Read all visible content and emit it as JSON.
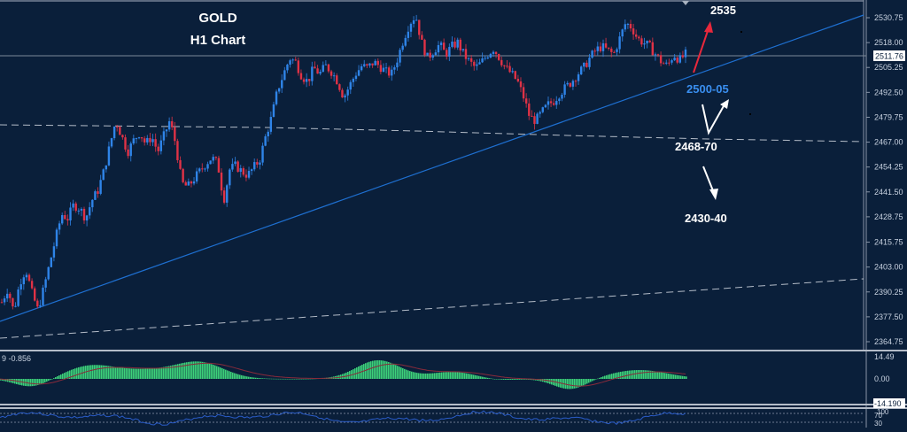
{
  "chart_data": {
    "type": "candlestick",
    "title": "GOLD",
    "subtitle": "H1 Chart",
    "symbol": "GOLD",
    "timeframe": "H1",
    "current_price": "2511.76",
    "y_axis": {
      "ticks": [
        "2530.75",
        "2518.00",
        "2505.25",
        "2492.50",
        "2479.75",
        "2467.00",
        "2454.25",
        "2441.50",
        "2428.75",
        "2415.75",
        "2403.00",
        "2390.25",
        "2377.50",
        "2364.75"
      ],
      "range": [
        2360,
        2538
      ]
    },
    "price_path": [
      2385,
      2392,
      2380,
      2395,
      2402,
      2390,
      2381,
      2392,
      2405,
      2418,
      2430,
      2428,
      2435,
      2433,
      2428,
      2437,
      2442,
      2452,
      2465,
      2478,
      2470,
      2462,
      2468,
      2472,
      2466,
      2470,
      2462,
      2470,
      2478,
      2466,
      2446,
      2444,
      2448,
      2452,
      2456,
      2459,
      2456,
      2437,
      2453,
      2455,
      2452,
      2450,
      2454,
      2458,
      2470,
      2480,
      2494,
      2502,
      2510,
      2508,
      2501,
      2498,
      2505,
      2502,
      2506,
      2503,
      2498,
      2490,
      2496,
      2502,
      2506,
      2505,
      2508,
      2506,
      2503,
      2502,
      2510,
      2520,
      2528,
      2532,
      2518,
      2510,
      2514,
      2517,
      2512,
      2516,
      2518,
      2512,
      2508,
      2505,
      2508,
      2512,
      2515,
      2510,
      2505,
      2502,
      2498,
      2490,
      2480,
      2478,
      2482,
      2486,
      2488,
      2492,
      2495,
      2498,
      2502,
      2505,
      2510,
      2514,
      2516,
      2514,
      2512,
      2520,
      2528,
      2526,
      2520,
      2518,
      2516,
      2512,
      2508,
      2506,
      2512,
      2509,
      2512
    ],
    "annotations": [
      {
        "text": "2535",
        "color": "#ffffff",
        "arrow": "up",
        "arrow_color": "#e8283c"
      },
      {
        "text": "2500-05",
        "color": "#3a8ff0"
      },
      {
        "text": "2468-70",
        "color": "#ffffff",
        "arrow": "down-up",
        "arrow_color": "#ffffff"
      },
      {
        "text": "2430-40",
        "color": "#ffffff",
        "arrow": "down",
        "arrow_color": "#ffffff"
      }
    ],
    "trendlines": [
      {
        "name": "ascending support",
        "color": "#1e6fd0",
        "style": "solid"
      },
      {
        "name": "horizontal resistance turned support",
        "color": "#b4bcc8",
        "style": "dashed",
        "level": "2467.00"
      },
      {
        "name": "lower channel",
        "color": "#b4bcc8",
        "style": "dashed"
      }
    ],
    "indicators": [
      {
        "name": "MACD",
        "label": "9 -0.856",
        "ticks": [
          "14.49",
          "0.00",
          "-14.190"
        ],
        "histogram_color": "#3dd17a",
        "signal_color": "#8a2a3a"
      },
      {
        "name": "RSI",
        "ticks": [
          "100",
          "70",
          "30"
        ],
        "line_color": "#2a5cc8"
      }
    ]
  },
  "indicator_panel": {
    "macd_label": "9 -0.856",
    "macd_top": "14.49",
    "macd_zero": "0.00",
    "macd_bottom": "-14.190",
    "rsi_100": "100",
    "rsi_70": "70",
    "rsi_30": "30"
  },
  "annotations": {
    "a1": "2535",
    "a2": "2500-05",
    "a3": "2468-70",
    "a4": "2430-40"
  },
  "header": {
    "title": "GOLD",
    "subtitle": "H1 Chart"
  },
  "price_tag": "2511.76",
  "colors": {
    "background": "#0a1f3a",
    "bull": "#2f84e8",
    "bear": "#e03246",
    "trend": "#1e6fd0",
    "macd": "#3dd17a"
  }
}
